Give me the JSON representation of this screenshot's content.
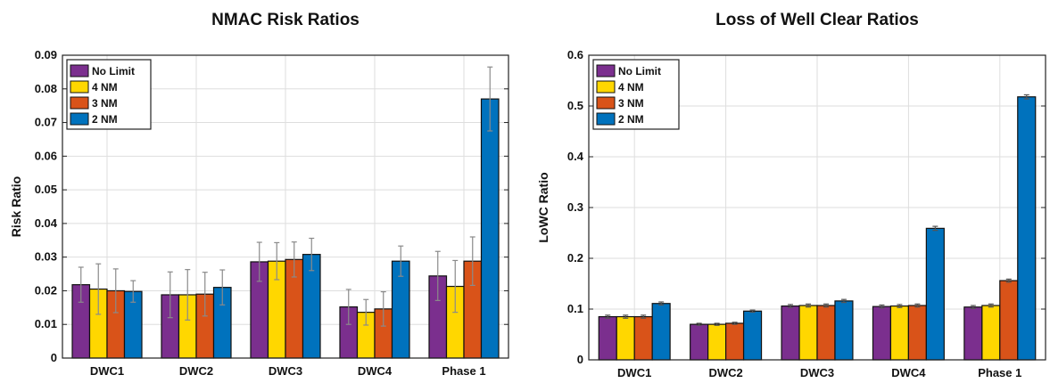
{
  "chart_data": [
    {
      "type": "bar",
      "title": "NMAC Risk Ratios",
      "xlabel": "",
      "ylabel": "Risk Ratio",
      "categories": [
        "DWC1",
        "DWC2",
        "DWC3",
        "DWC4",
        "Phase 1"
      ],
      "ylim": [
        0,
        0.09
      ],
      "yticks": [
        "0",
        "0.01",
        "0.02",
        "0.03",
        "0.04",
        "0.05",
        "0.06",
        "0.07",
        "0.08",
        "0.09"
      ],
      "grid": true,
      "legend_position": "top-left",
      "series": [
        {
          "name": "No Limit",
          "color": "#7B2F8E",
          "values": [
            0.0218,
            0.0188,
            0.0286,
            0.0152,
            0.0244
          ],
          "errors": [
            0.0052,
            0.0068,
            0.0058,
            0.0052,
            0.0073
          ]
        },
        {
          "name": "4 NM",
          "color": "#FFD700",
          "values": [
            0.0205,
            0.0188,
            0.0288,
            0.0136,
            0.0213
          ],
          "errors": [
            0.0075,
            0.0075,
            0.0055,
            0.0038,
            0.0077
          ]
        },
        {
          "name": "3 NM",
          "color": "#D95319",
          "values": [
            0.02,
            0.019,
            0.0293,
            0.0146,
            0.0288
          ],
          "errors": [
            0.0065,
            0.0065,
            0.0052,
            0.0051,
            0.0072
          ]
        },
        {
          "name": "2 NM",
          "color": "#0072BD",
          "values": [
            0.0198,
            0.021,
            0.0308,
            0.0288,
            0.077
          ],
          "errors": [
            0.0032,
            0.0052,
            0.0048,
            0.0045,
            0.0095
          ]
        }
      ]
    },
    {
      "type": "bar",
      "title": "Loss of Well Clear Ratios",
      "xlabel": "",
      "ylabel": "LoWC Ratio",
      "categories": [
        "DWC1",
        "DWC2",
        "DWC3",
        "DWC4",
        "Phase 1"
      ],
      "ylim": [
        0,
        0.6
      ],
      "yticks": [
        "0",
        "0.1",
        "0.2",
        "0.3",
        "0.4",
        "0.5",
        "0.6"
      ],
      "grid": true,
      "legend_position": "top-left",
      "series": [
        {
          "name": "No Limit",
          "color": "#7B2F8E",
          "values": [
            0.085,
            0.07,
            0.106,
            0.105,
            0.104
          ],
          "errors": [
            0.003,
            0.002,
            0.003,
            0.003,
            0.003
          ]
        },
        {
          "name": "4 NM",
          "color": "#FFD700",
          "values": [
            0.085,
            0.07,
            0.107,
            0.106,
            0.107
          ],
          "errors": [
            0.003,
            0.002,
            0.003,
            0.003,
            0.003
          ]
        },
        {
          "name": "3 NM",
          "color": "#D95319",
          "values": [
            0.085,
            0.072,
            0.107,
            0.107,
            0.156
          ],
          "errors": [
            0.003,
            0.002,
            0.003,
            0.003,
            0.003
          ]
        },
        {
          "name": "2 NM",
          "color": "#0072BD",
          "values": [
            0.111,
            0.096,
            0.116,
            0.259,
            0.518
          ],
          "errors": [
            0.003,
            0.002,
            0.003,
            0.004,
            0.004
          ]
        }
      ]
    }
  ]
}
